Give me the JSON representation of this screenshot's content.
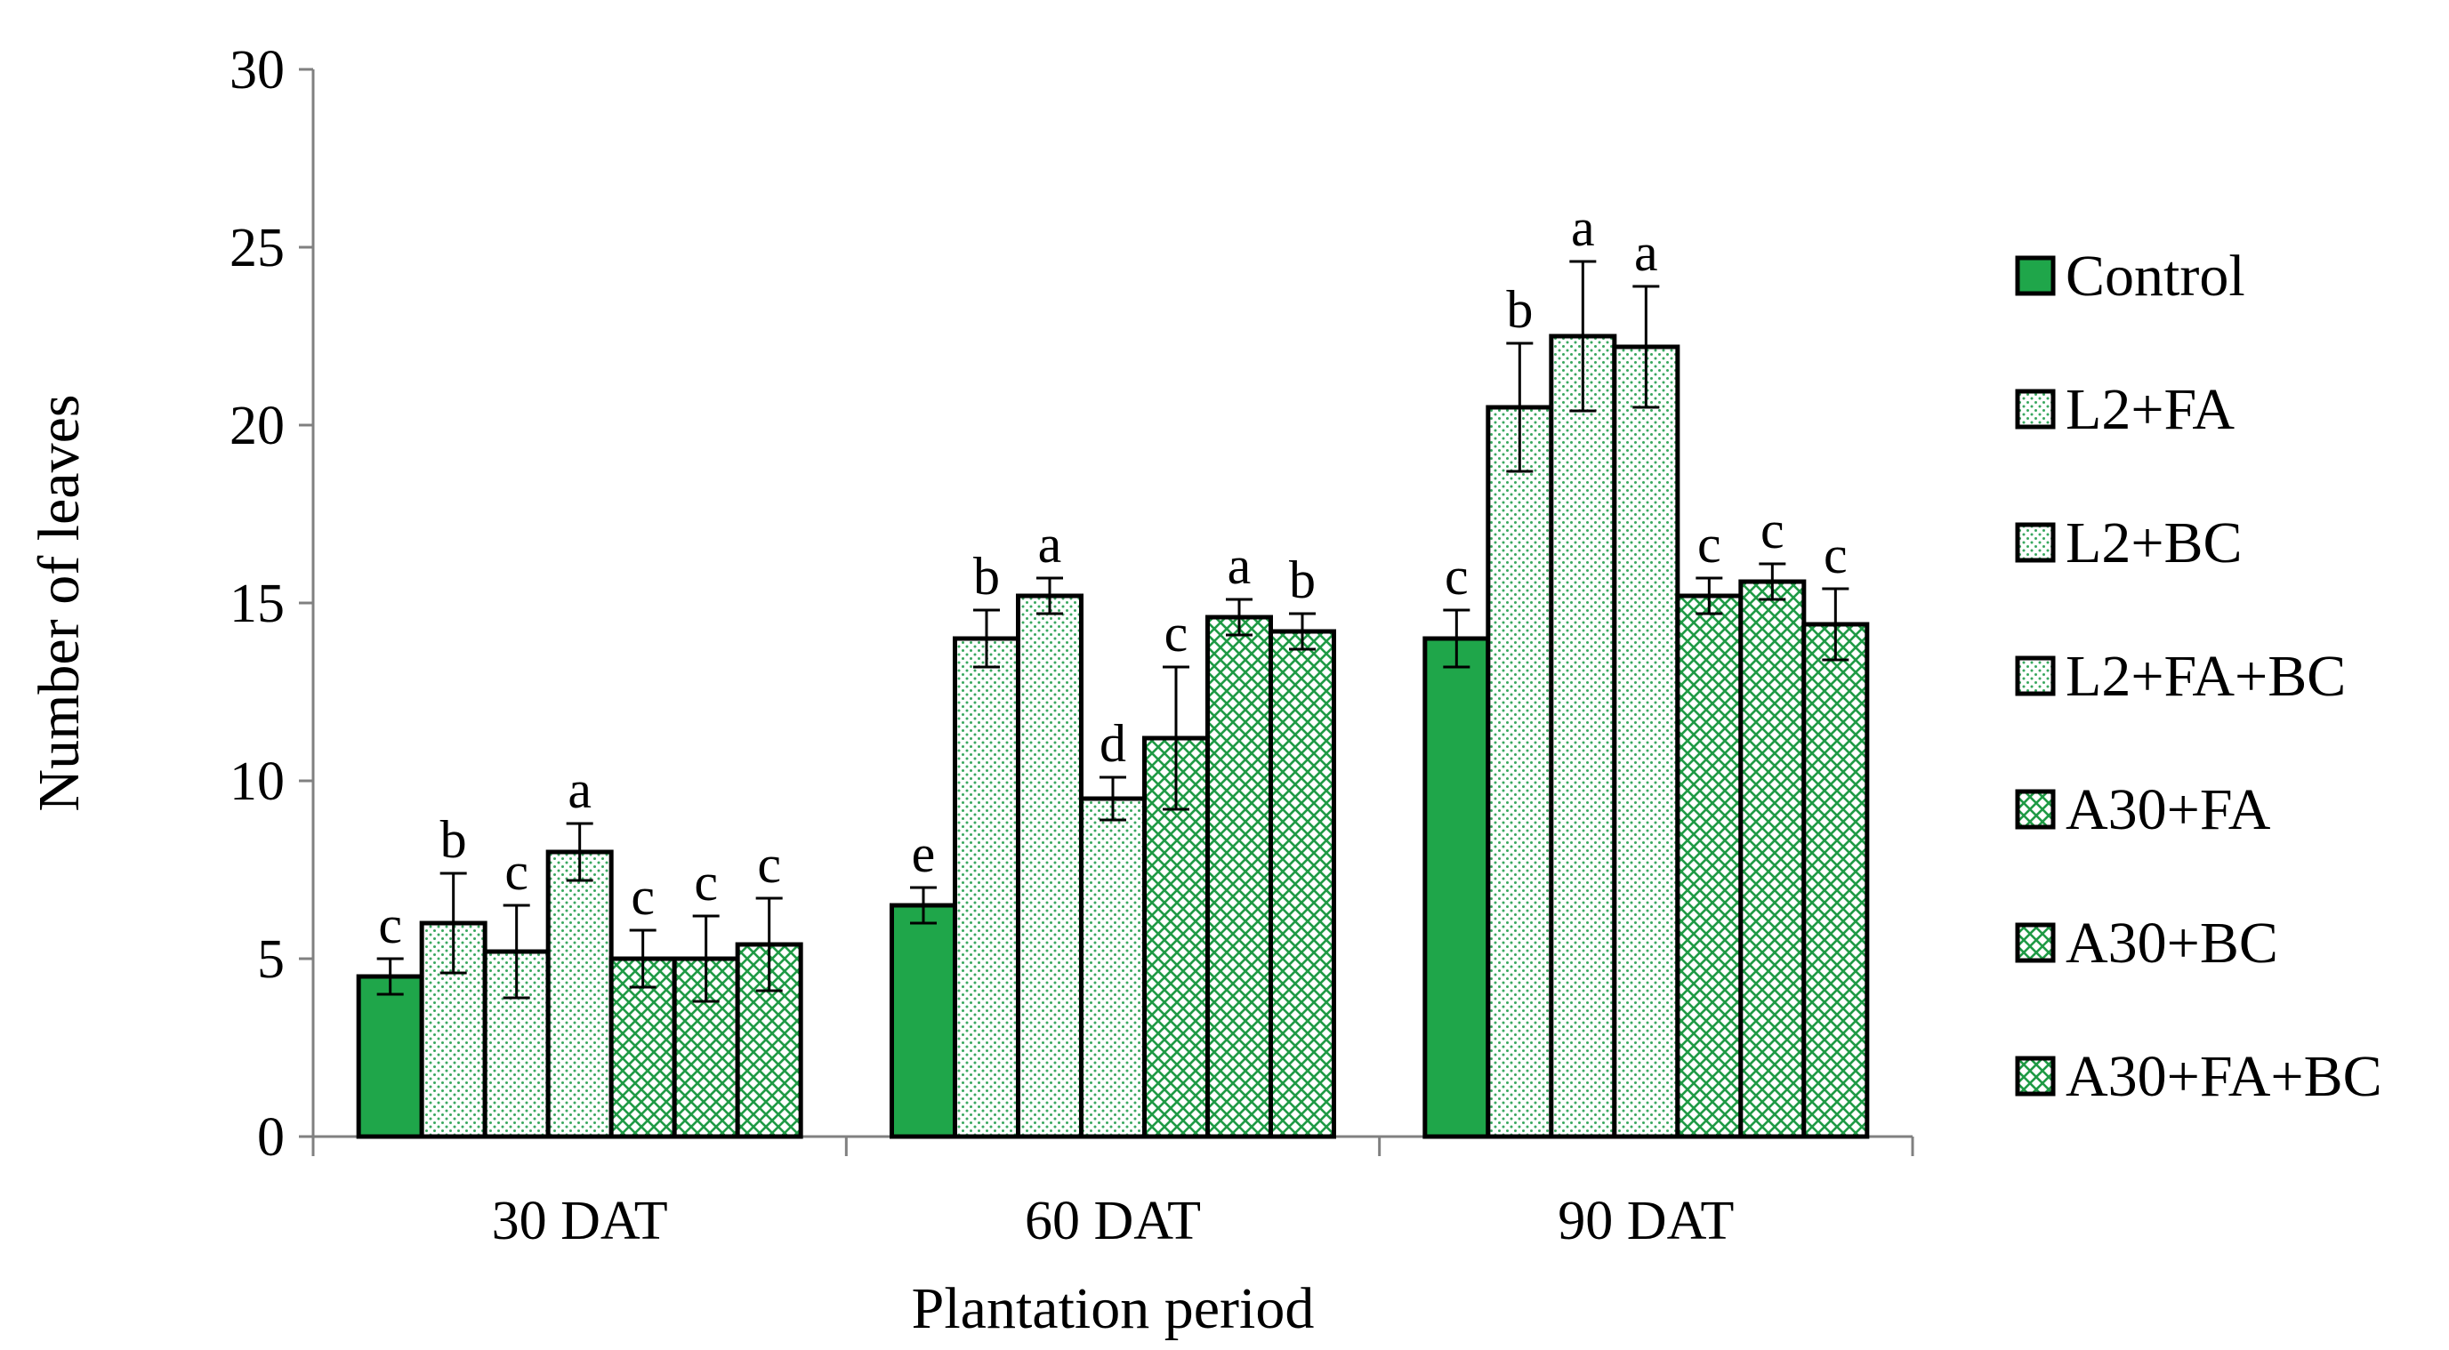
{
  "chart_data": {
    "type": "bar",
    "title": "",
    "xlabel": "Plantation period",
    "ylabel": "Number of leaves",
    "ylim": [
      0,
      30
    ],
    "yticks": [
      0,
      5,
      10,
      15,
      20,
      25,
      30
    ],
    "categories": [
      "30 DAT",
      "60 DAT",
      "90 DAT"
    ],
    "legend_position": "right",
    "grid": false,
    "series": [
      {
        "name": "Control",
        "pattern": "solid",
        "color": "#1fa64a",
        "values": [
          4.5,
          6.5,
          14.0
        ],
        "errors": [
          0.5,
          0.5,
          0.8
        ],
        "letters": [
          "c",
          "e",
          "c"
        ]
      },
      {
        "name": "L2+FA",
        "pattern": "dots",
        "color": "#1fa64a",
        "values": [
          6.0,
          14.0,
          20.5
        ],
        "errors": [
          1.4,
          0.8,
          1.8
        ],
        "letters": [
          "b",
          "b",
          "b"
        ]
      },
      {
        "name": "L2+BC",
        "pattern": "dots",
        "color": "#1fa64a",
        "values": [
          5.2,
          15.2,
          22.5
        ],
        "errors": [
          1.3,
          0.5,
          2.1
        ],
        "letters": [
          "c",
          "a",
          "a"
        ]
      },
      {
        "name": "L2+FA+BC",
        "pattern": "dots",
        "color": "#1fa64a",
        "values": [
          8.0,
          9.5,
          22.2
        ],
        "errors": [
          0.8,
          0.6,
          1.7
        ],
        "letters": [
          "a",
          "d",
          "a"
        ]
      },
      {
        "name": "A30+FA",
        "pattern": "cross",
        "color": "#1fa64a",
        "values": [
          5.0,
          11.2,
          15.2
        ],
        "errors": [
          0.8,
          2.0,
          0.5
        ],
        "letters": [
          "c",
          "c",
          "c"
        ]
      },
      {
        "name": "A30+BC",
        "pattern": "cross",
        "color": "#1fa64a",
        "values": [
          5.0,
          14.6,
          15.6
        ],
        "errors": [
          1.2,
          0.5,
          0.5
        ],
        "letters": [
          "c",
          "a",
          "c"
        ]
      },
      {
        "name": "A30+FA+BC",
        "pattern": "cross",
        "color": "#1fa64a",
        "values": [
          5.4,
          14.2,
          14.4
        ],
        "errors": [
          1.3,
          0.5,
          1.0
        ],
        "letters": [
          "c",
          "b",
          "c"
        ]
      }
    ]
  }
}
